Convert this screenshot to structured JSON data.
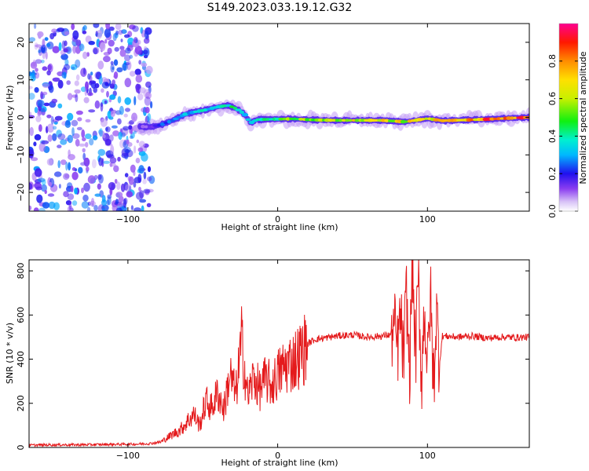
{
  "title": "S149.2023.033.19.12.G32",
  "chart_data": [
    {
      "type": "heatmap",
      "xlabel": "Height of straight line (km)",
      "ylabel": "Frequency (Hz)",
      "xlim": [
        -166,
        168
      ],
      "ylim": [
        -25,
        25
      ],
      "xticks": [
        -100,
        0,
        100
      ],
      "yticks": [
        -20,
        -10,
        0,
        10,
        20
      ],
      "colorbar": {
        "label": "Normalized spectral amplitude",
        "range": [
          0,
          1
        ],
        "ticks": [
          0.0,
          0.2,
          0.4,
          0.6,
          0.8
        ]
      },
      "noise_region": {
        "x_from": -166,
        "x_to": -84,
        "freq_range": [
          -25,
          25
        ],
        "amplitude": 0.15
      },
      "ridge": [
        {
          "x": -92,
          "freq": -2.4,
          "amp": 0.1
        },
        {
          "x": -85,
          "freq": -2.6,
          "amp": 0.15
        },
        {
          "x": -78,
          "freq": -2.0,
          "amp": 0.25
        },
        {
          "x": -70,
          "freq": -0.8,
          "amp": 0.3
        },
        {
          "x": -62,
          "freq": 0.8,
          "amp": 0.35
        },
        {
          "x": -55,
          "freq": 1.5,
          "amp": 0.38
        },
        {
          "x": -48,
          "freq": 2.0,
          "amp": 0.4
        },
        {
          "x": -40,
          "freq": 2.8,
          "amp": 0.42
        },
        {
          "x": -33,
          "freq": 3.2,
          "amp": 0.45
        },
        {
          "x": -27,
          "freq": 2.2,
          "amp": 0.48
        },
        {
          "x": -22,
          "freq": 0.8,
          "amp": 0.42
        },
        {
          "x": -18,
          "freq": -1.5,
          "amp": 0.35
        },
        {
          "x": -14,
          "freq": -0.6,
          "amp": 0.4
        },
        {
          "x": -5,
          "freq": -0.5,
          "amp": 0.5
        },
        {
          "x": 10,
          "freq": -0.4,
          "amp": 0.6
        },
        {
          "x": 25,
          "freq": -0.7,
          "amp": 0.65
        },
        {
          "x": 40,
          "freq": -0.8,
          "amp": 0.7
        },
        {
          "x": 55,
          "freq": -0.8,
          "amp": 0.7
        },
        {
          "x": 70,
          "freq": -0.8,
          "amp": 0.72
        },
        {
          "x": 85,
          "freq": -1.2,
          "amp": 0.72
        },
        {
          "x": 100,
          "freq": -0.3,
          "amp": 0.75
        },
        {
          "x": 110,
          "freq": -0.9,
          "amp": 0.8
        },
        {
          "x": 125,
          "freq": -0.7,
          "amp": 0.85
        },
        {
          "x": 140,
          "freq": -0.5,
          "amp": 0.9
        },
        {
          "x": 155,
          "freq": -0.2,
          "amp": 0.95
        },
        {
          "x": 168,
          "freq": 0.0,
          "amp": 1.0
        }
      ]
    },
    {
      "type": "line",
      "xlabel": "Height of straight line (km)",
      "ylabel": "SNR (10 * v/v)",
      "xlim": [
        -166,
        168
      ],
      "ylim": [
        0,
        850
      ],
      "xticks": [
        -100,
        0,
        100
      ],
      "yticks": [
        0,
        200,
        400,
        600,
        800
      ],
      "color": "#e41a1c",
      "series": [
        {
          "x": [
            -166,
            -150,
            -130,
            -110,
            -95,
            -85,
            -78,
            -70,
            -65,
            -60,
            -56,
            -52,
            -48,
            -44,
            -40,
            -36,
            -32,
            -28,
            -24,
            -20,
            -16,
            -12,
            -8,
            -4,
            0,
            5,
            10,
            15,
            20,
            25,
            30,
            40,
            50,
            60,
            70,
            75,
            78,
            80,
            82,
            84,
            86,
            88,
            90,
            92,
            94,
            96,
            98,
            100,
            102,
            104,
            106,
            108,
            110,
            120,
            130,
            140,
            150,
            160,
            168
          ],
          "y": [
            10,
            12,
            12,
            14,
            15,
            18,
            25,
            60,
            80,
            120,
            150,
            100,
            210,
            180,
            250,
            170,
            330,
            240,
            480,
            230,
            320,
            260,
            310,
            280,
            330,
            370,
            390,
            420,
            470,
            490,
            495,
            505,
            510,
            500,
            505,
            510,
            540,
            440,
            600,
            390,
            700,
            330,
            850,
            400,
            760,
            300,
            650,
            340,
            700,
            270,
            620,
            380,
            505,
            500,
            505,
            495,
            500,
            498,
            500
          ]
        }
      ]
    }
  ]
}
